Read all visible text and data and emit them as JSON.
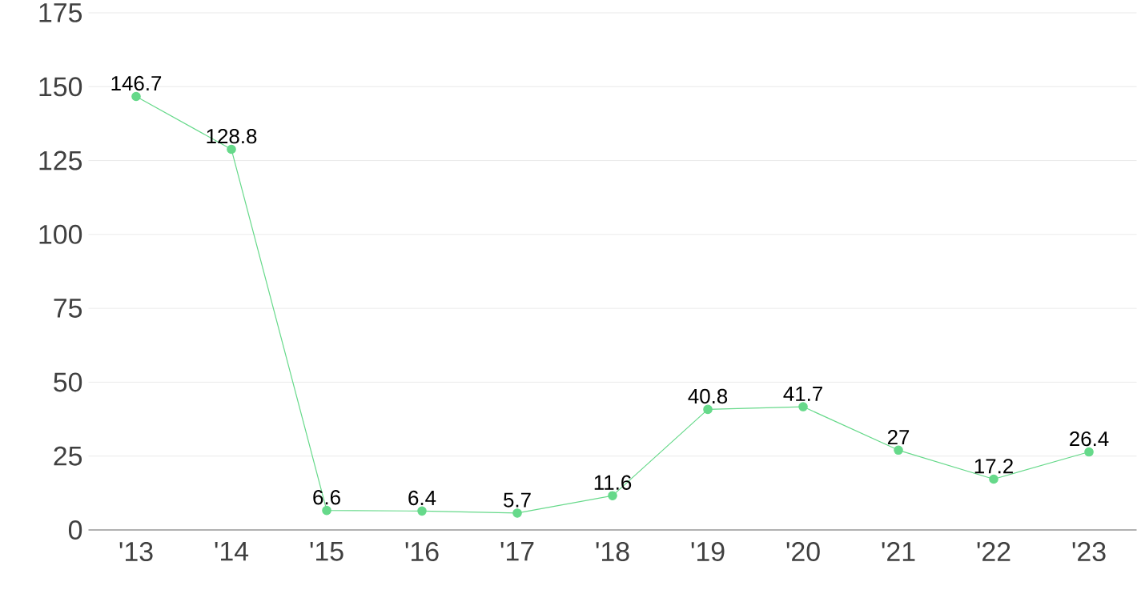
{
  "chart_data": {
    "type": "line",
    "categories": [
      "'13",
      "'14",
      "'15",
      "'16",
      "'17",
      "'18",
      "'19",
      "'20",
      "'21",
      "'22",
      "'23"
    ],
    "values": [
      146.7,
      128.8,
      6.6,
      6.4,
      5.7,
      11.6,
      40.8,
      41.7,
      27,
      17.2,
      26.4
    ],
    "color": "#66d98a",
    "ylim": [
      0,
      175
    ],
    "yticks": [
      0,
      25,
      50,
      75,
      100,
      125,
      150,
      175
    ],
    "grid": "y",
    "marker": "circle",
    "line_style": "solid",
    "data_labels": true
  }
}
